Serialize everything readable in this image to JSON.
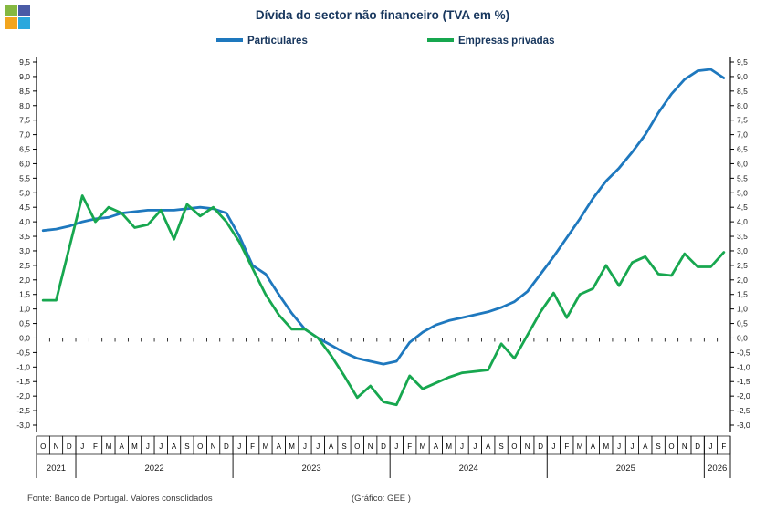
{
  "header": {
    "logo": {
      "name": "gee-logo",
      "colors": {
        "top_left": "#85b841",
        "top_right": "#4a5ba6",
        "bottom_left": "#f2a51e",
        "bottom_right": "#2aa8dd"
      }
    }
  },
  "legend": [
    {
      "label": "Particulares",
      "color": "#1e78be"
    },
    {
      "label": "Empresas privadas",
      "color": "#17a74f"
    }
  ],
  "footer": {
    "source": "Fonte: Banco de Portugal. Valores consolidados",
    "credit": "(Gráfico: GEE )"
  },
  "chart_data": {
    "type": "line",
    "title": "Dívida do sector não financeiro (TVA em %)",
    "title_color": "#17365d",
    "ylim": [
      -3.0,
      9.5
    ],
    "ytick_step": 0.5,
    "y_label_decimal": "comma",
    "grid": false,
    "legend_position": "top",
    "x_axis": {
      "years": [
        {
          "label": "2021",
          "months": [
            "O",
            "N",
            "D"
          ]
        },
        {
          "label": "2022",
          "months": [
            "J",
            "F",
            "M",
            "A",
            "M",
            "J",
            "J",
            "A",
            "S",
            "O",
            "N",
            "D"
          ]
        },
        {
          "label": "2023",
          "months": [
            "J",
            "F",
            "M",
            "A",
            "M",
            "J",
            "J",
            "A",
            "S",
            "O",
            "N",
            "D"
          ]
        },
        {
          "label": "2024",
          "months": [
            "J",
            "F",
            "M",
            "A",
            "M",
            "J",
            "J",
            "A",
            "S",
            "O",
            "N",
            "D"
          ]
        },
        {
          "label": "2025",
          "months": [
            "J",
            "F",
            "M",
            "A",
            "M",
            "J",
            "J",
            "A",
            "S",
            "O",
            "N",
            "D"
          ]
        },
        {
          "label": "2026",
          "months": [
            "J",
            "F"
          ]
        }
      ]
    },
    "series": [
      {
        "name": "Particulares",
        "color": "#1e78be",
        "values": [
          3.7,
          3.75,
          3.85,
          4.0,
          4.1,
          4.15,
          4.3,
          4.35,
          4.4,
          4.4,
          4.4,
          4.45,
          4.5,
          4.45,
          4.3,
          3.5,
          2.5,
          2.2,
          1.5,
          0.85,
          0.3,
          0.0,
          -0.25,
          -0.5,
          -0.7,
          -0.8,
          -0.9,
          -0.8,
          -0.15,
          0.2,
          0.45,
          0.6,
          0.7,
          0.8,
          0.9,
          1.05,
          1.25,
          1.6,
          2.2,
          2.8,
          3.45,
          4.1,
          4.8,
          5.4,
          5.85,
          6.4,
          7.0,
          7.75,
          8.4,
          8.9,
          9.2,
          9.25,
          8.95
        ]
      },
      {
        "name": "Empresas privadas",
        "color": "#17a74f",
        "values": [
          1.3,
          1.3,
          3.1,
          4.9,
          4.0,
          4.5,
          4.3,
          3.8,
          3.9,
          4.4,
          3.4,
          4.6,
          4.2,
          4.5,
          4.0,
          3.3,
          2.4,
          1.5,
          0.8,
          0.3,
          0.3,
          0.0,
          -0.6,
          -1.3,
          -2.05,
          -1.65,
          -2.2,
          -2.3,
          -1.3,
          -1.75,
          -1.55,
          -1.35,
          -1.2,
          -1.15,
          -1.1,
          -0.2,
          -0.7,
          0.1,
          0.9,
          1.55,
          0.7,
          1.5,
          1.7,
          2.5,
          1.8,
          2.6,
          2.8,
          2.2,
          2.15,
          2.9,
          2.45,
          2.45,
          2.95
        ]
      }
    ]
  }
}
